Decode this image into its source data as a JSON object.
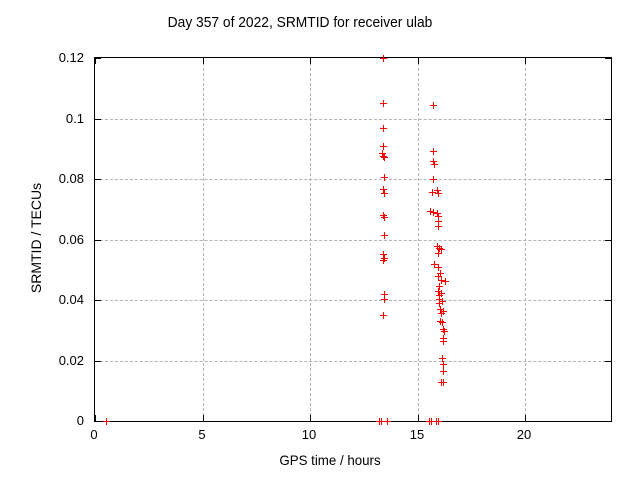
{
  "chart_data": {
    "type": "scatter",
    "title": "Day 357 of 2022, SRMTID for receiver ulab",
    "xlabel": "GPS time / hours",
    "ylabel": "SRMTID / TECUs",
    "xlim": [
      0,
      24
    ],
    "ylim": [
      0,
      0.12
    ],
    "grid": true,
    "legend": "none",
    "xticks": {
      "values": [
        0,
        5,
        10,
        15,
        20
      ],
      "labels": [
        "0",
        "5",
        "10",
        "15",
        "20"
      ]
    },
    "yticks": {
      "values": [
        0,
        0.02,
        0.04,
        0.06,
        0.08,
        0.1,
        0.12
      ],
      "labels": [
        "0",
        "0.02",
        "0.04",
        "0.06",
        "0.08",
        "0.1",
        "0.12"
      ]
    },
    "marker": {
      "shape": "plus",
      "color": "#ff0000",
      "size": 7
    },
    "colors": {
      "background": "#ffffff",
      "border": "#000000",
      "grid": "#b4b4b4"
    },
    "series": [
      {
        "name": "SRMTID",
        "points": [
          [
            0.5,
            0
          ],
          [
            13.2,
            0
          ],
          [
            13.3,
            0
          ],
          [
            13.6,
            0
          ],
          [
            13.4,
            0.12
          ],
          [
            13.4,
            0.1052
          ],
          [
            13.4,
            0.097
          ],
          [
            13.4,
            0.091
          ],
          [
            13.35,
            0.0887
          ],
          [
            13.4,
            0.0876
          ],
          [
            13.45,
            0.0872
          ],
          [
            13.46,
            0.0806
          ],
          [
            13.4,
            0.0766
          ],
          [
            13.42,
            0.0753
          ],
          [
            13.4,
            0.068
          ],
          [
            13.44,
            0.0674
          ],
          [
            13.45,
            0.0614
          ],
          [
            13.38,
            0.0552
          ],
          [
            13.42,
            0.054
          ],
          [
            13.41,
            0.0533
          ],
          [
            13.42,
            0.042
          ],
          [
            13.42,
            0.0404
          ],
          [
            13.38,
            0.035
          ],
          [
            15.73,
            0.1046
          ],
          [
            15.73,
            0.0894
          ],
          [
            15.72,
            0.086
          ],
          [
            15.76,
            0.0851
          ],
          [
            15.73,
            0.08
          ],
          [
            15.68,
            0.0757
          ],
          [
            15.93,
            0.0763
          ],
          [
            15.97,
            0.0754
          ],
          [
            15.6,
            0.0695
          ],
          [
            15.73,
            0.069
          ],
          [
            15.9,
            0.0687
          ],
          [
            15.95,
            0.0677
          ],
          [
            15.97,
            0.066
          ],
          [
            15.97,
            0.0645
          ],
          [
            15.9,
            0.0578
          ],
          [
            16.02,
            0.0571
          ],
          [
            16.08,
            0.0567
          ],
          [
            15.95,
            0.0557
          ],
          [
            15.75,
            0.0518
          ],
          [
            15.95,
            0.051
          ],
          [
            16.03,
            0.049
          ],
          [
            15.95,
            0.0478
          ],
          [
            16.1,
            0.0466
          ],
          [
            16.28,
            0.0462
          ],
          [
            16.0,
            0.0446
          ],
          [
            15.97,
            0.043
          ],
          [
            16.1,
            0.0424
          ],
          [
            16.0,
            0.0418
          ],
          [
            15.98,
            0.0402
          ],
          [
            16.13,
            0.0397
          ],
          [
            16.02,
            0.039
          ],
          [
            16.05,
            0.0369
          ],
          [
            16.17,
            0.0363
          ],
          [
            16.07,
            0.0356
          ],
          [
            16.05,
            0.0331
          ],
          [
            16.14,
            0.0327
          ],
          [
            16.17,
            0.0303
          ],
          [
            16.25,
            0.0297
          ],
          [
            16.17,
            0.0275
          ],
          [
            16.2,
            0.0264
          ],
          [
            16.12,
            0.0209
          ],
          [
            16.17,
            0.0187
          ],
          [
            16.17,
            0.0165
          ],
          [
            16.1,
            0.0128
          ],
          [
            16.17,
            0.0129
          ],
          [
            15.55,
            0
          ],
          [
            15.65,
            0
          ],
          [
            15.85,
            0
          ],
          [
            15.95,
            0
          ]
        ]
      }
    ]
  }
}
